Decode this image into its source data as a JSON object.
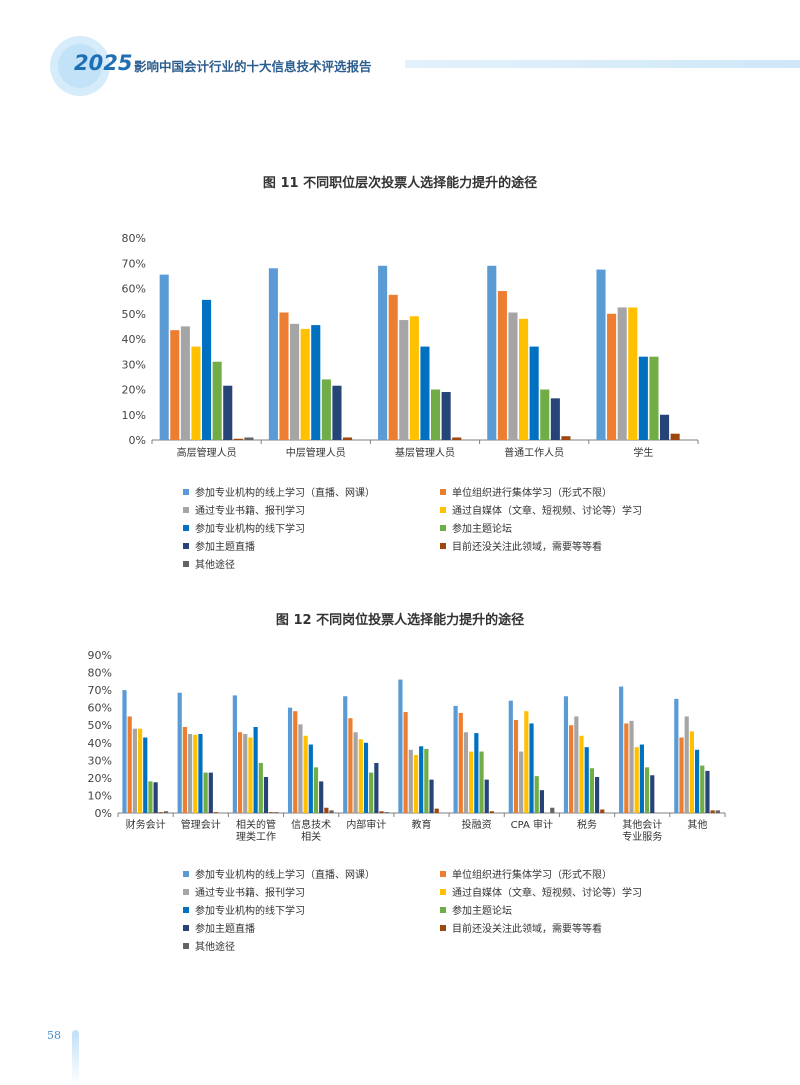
{
  "header": {
    "year": "2025",
    "title": "影响中国会计行业的十大信息技术评选报告"
  },
  "page_number": "58",
  "colors": [
    "#5b9bd5",
    "#ed7d31",
    "#a5a5a5",
    "#ffc000",
    "#0070c0",
    "#70ad47",
    "#264478",
    "#9e480e",
    "#636363"
  ],
  "chart_data": [
    {
      "type": "bar",
      "title": "图 11 不同职位层次投票人选择能力提升的途径",
      "categories": [
        "高层管理人员",
        "中层管理人员",
        "基层管理人员",
        "普通工作人员",
        "学生"
      ],
      "yticks": [
        "0%",
        "10%",
        "20%",
        "30%",
        "40%",
        "50%",
        "60%",
        "70%",
        "80%"
      ],
      "ylim": [
        0,
        80
      ],
      "series": [
        {
          "name": "参加专业机构的线上学习（直播、网课）",
          "values": [
            65.5,
            68,
            69,
            69,
            67.5
          ]
        },
        {
          "name": "单位组织进行集体学习（形式不限）",
          "values": [
            43.5,
            50.5,
            57.5,
            59,
            50
          ]
        },
        {
          "name": "通过专业书籍、报刊学习",
          "values": [
            45,
            46,
            47.5,
            50.5,
            52.5
          ]
        },
        {
          "name": "通过自媒体（文章、短视频、讨论等）学习",
          "values": [
            37,
            44,
            49,
            48,
            52.5
          ]
        },
        {
          "name": "参加专业机构的线下学习",
          "values": [
            55.5,
            45.5,
            37,
            37,
            33
          ]
        },
        {
          "name": "参加主题论坛",
          "values": [
            31,
            24,
            20,
            20,
            33
          ]
        },
        {
          "name": "参加主题直播",
          "values": [
            21.5,
            21.5,
            19,
            16.5,
            10
          ]
        },
        {
          "name": "目前还没关注此领域，需要等等看",
          "values": [
            0.5,
            1,
            1,
            1.5,
            2.5
          ]
        },
        {
          "name": "其他途径",
          "values": [
            1,
            0,
            0,
            0,
            0
          ]
        }
      ],
      "legend": [
        "参加专业机构的线上学习（直播、网课）",
        "单位组织进行集体学习（形式不限）",
        "通过专业书籍、报刊学习",
        "通过自媒体（文章、短视频、讨论等）学习",
        "参加专业机构的线下学习",
        "参加主题论坛",
        "参加主题直播",
        "目前还没关注此领域，需要等等看",
        "其他途径"
      ]
    },
    {
      "type": "bar",
      "title": "图 12 不同岗位投票人选择能力提升的途径",
      "categories": [
        [
          "财务会计"
        ],
        [
          "管理会计"
        ],
        [
          "相关的管",
          "理类工作"
        ],
        [
          "信息技术",
          "相关"
        ],
        [
          "内部审计"
        ],
        [
          "教育"
        ],
        [
          "投融资"
        ],
        [
          "CPA 审计"
        ],
        [
          "税务"
        ],
        [
          "其他会计",
          "专业服务"
        ],
        [
          "其他"
        ]
      ],
      "yticks": [
        "0%",
        "10%",
        "20%",
        "30%",
        "40%",
        "50%",
        "60%",
        "70%",
        "80%",
        "90%"
      ],
      "ylim": [
        0,
        90
      ],
      "series": [
        {
          "name": "参加专业机构的线上学习（直播、网课）",
          "values": [
            70,
            68.5,
            67,
            60,
            66.5,
            76,
            61,
            64,
            66.5,
            72,
            65
          ]
        },
        {
          "name": "单位组织进行集体学习（形式不限）",
          "values": [
            55,
            49,
            46,
            58,
            54,
            57.5,
            57,
            53,
            50,
            51,
            43
          ]
        },
        {
          "name": "通过专业书籍、报刊学习",
          "values": [
            48,
            45,
            45,
            50.5,
            46,
            36,
            46,
            35,
            55,
            52.5,
            55
          ]
        },
        {
          "name": "通过自媒体（文章、短视频、讨论等）学习",
          "values": [
            48,
            44.5,
            43,
            44,
            42,
            33,
            35,
            58,
            44,
            37.5,
            46.5
          ]
        },
        {
          "name": "参加专业机构的线下学习",
          "values": [
            43,
            45,
            49,
            39,
            40,
            38,
            45.5,
            51,
            37.5,
            39,
            36
          ]
        },
        {
          "name": "参加主题论坛",
          "values": [
            18,
            23,
            28.5,
            26,
            23,
            36.5,
            35,
            21,
            25.5,
            26,
            27
          ]
        },
        {
          "name": "参加主题直播",
          "values": [
            17.5,
            23,
            20.5,
            18,
            28.5,
            19,
            19,
            13,
            20.5,
            21.5,
            24
          ]
        },
        {
          "name": "目前还没关注此领域，需要等等看",
          "values": [
            0.5,
            0.5,
            0.5,
            3,
            1,
            2.5,
            1,
            0,
            2,
            0,
            1.5
          ]
        },
        {
          "name": "其他途径",
          "values": [
            1,
            0,
            0.5,
            1.5,
            0.5,
            0,
            0,
            3,
            0,
            0,
            1.5
          ]
        }
      ],
      "legend": [
        "参加专业机构的线上学习（直播、网课）",
        "单位组织进行集体学习（形式不限）",
        "通过专业书籍、报刊学习",
        "通过自媒体（文章、短视频、讨论等）学习",
        "参加专业机构的线下学习",
        "参加主题论坛",
        "参加主题直播",
        "目前还没关注此领域，需要等等看",
        "其他途径"
      ]
    }
  ]
}
